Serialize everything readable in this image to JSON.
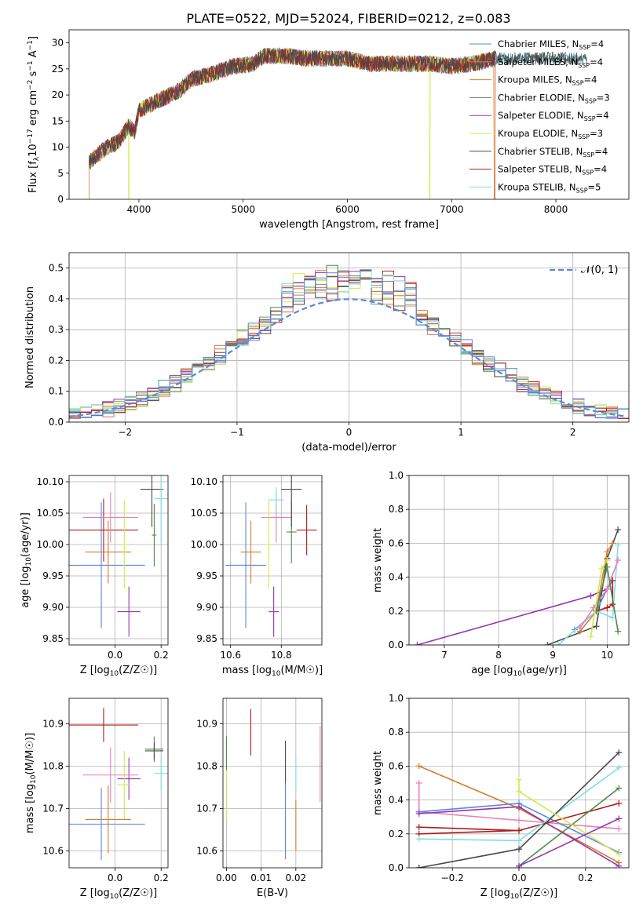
{
  "figure_title": "PLATE=0522, MJD=52024, FIBERID=0212, z=0.083",
  "series_styles": [
    {
      "name": "Chabrier MILES",
      "color": "#4e9aa0"
    },
    {
      "name": "Salpeter MILES",
      "color": "#e8704a"
    },
    {
      "name": "Kroupa MILES",
      "color": "#d97b2b"
    },
    {
      "name": "Chabrier ELODIE",
      "color": "#4d8a4a"
    },
    {
      "name": "Salpeter ELODIE",
      "color": "#9335b0"
    },
    {
      "name": "Kroupa ELODIE",
      "color": "#d4e64d"
    },
    {
      "name": "Chabrier STELIB",
      "color": "#4a4a4a"
    },
    {
      "name": "Salpeter STELIB",
      "color": "#b01a1a"
    },
    {
      "name": "Kroupa STELIB",
      "color": "#82dde0"
    }
  ],
  "extra_colors": {
    "blue": "#5b88e0",
    "pink": "#e87fb8",
    "gauss": "#5b88d8"
  },
  "chart_data": [
    {
      "id": "spectrum",
      "type": "line",
      "xlabel": "wavelength [Angstrom, rest frame]",
      "ylabel_parts": {
        "pre": "Flux [f",
        "sub": "λ",
        "mid": "10",
        "sup1": "−17",
        "mid2": " erg cm",
        "sup2": "−2",
        "mid3": " s",
        "sup3": "−1",
        "mid4": " A",
        "sup4": "−1",
        "post": "]"
      },
      "xlim": [
        3330,
        8700
      ],
      "ylim": [
        0,
        32.5
      ],
      "xticks": [
        4000,
        5000,
        6000,
        7000,
        8000
      ],
      "yticks": [
        0,
        5,
        10,
        15,
        20,
        25,
        30
      ],
      "grid": false,
      "legend_position": "top-right",
      "legend": [
        {
          "label": "Chabrier MILES",
          "nssp": "4"
        },
        {
          "label": "Salpeter MILES",
          "nssp": "4"
        },
        {
          "label": "Kroupa MILES",
          "nssp": "4"
        },
        {
          "label": "Chabrier ELODIE",
          "nssp": "3"
        },
        {
          "label": "Salpeter ELODIE",
          "nssp": "4"
        },
        {
          "label": "Kroupa ELODIE",
          "nssp": "3"
        },
        {
          "label": "Chabrier STELIB",
          "nssp": "4"
        },
        {
          "label": "Salpeter STELIB",
          "nssp": "4"
        },
        {
          "label": "Kroupa STELIB",
          "nssp": "5"
        }
      ],
      "legend_text_nssp": "N",
      "legend_text_sub": "SSP",
      "continuum": [
        [
          3520,
          7
        ],
        [
          3600,
          8.5
        ],
        [
          3700,
          10
        ],
        [
          3800,
          11
        ],
        [
          3900,
          14
        ],
        [
          3960,
          13
        ],
        [
          4000,
          17
        ],
        [
          4100,
          18
        ],
        [
          4200,
          19
        ],
        [
          4300,
          20
        ],
        [
          4400,
          21
        ],
        [
          4500,
          23
        ],
        [
          4700,
          24
        ],
        [
          4900,
          25.5
        ],
        [
          5100,
          26
        ],
        [
          5200,
          27.5
        ],
        [
          5400,
          27.5
        ],
        [
          5600,
          27
        ],
        [
          5800,
          27
        ],
        [
          6000,
          27
        ],
        [
          6200,
          26
        ],
        [
          6400,
          26
        ],
        [
          6600,
          26
        ],
        [
          6800,
          26
        ],
        [
          7000,
          25.5
        ],
        [
          7200,
          26
        ],
        [
          7420,
          27
        ]
      ],
      "extended_range": [
        7420,
        8300
      ],
      "extended_series": [
        "Chabrier MILES",
        "Chabrier STELIB"
      ]
    },
    {
      "id": "residuals",
      "type": "step",
      "xlabel": "(data-model)/error",
      "ylabel": "Normed distribution",
      "xlim": [
        -2.5,
        2.5
      ],
      "ylim": [
        0,
        0.55
      ],
      "xticks": [
        -2,
        -1,
        0,
        1,
        2
      ],
      "xtick_labels": [
        "−2",
        "−1",
        "0",
        "1",
        "2"
      ],
      "yticks": [
        0.0,
        0.1,
        0.2,
        0.3,
        0.4,
        0.5
      ],
      "ytick_labels": [
        "0.0",
        "0.1",
        "0.2",
        "0.3",
        "0.4",
        "0.5"
      ],
      "grid": true,
      "bin_width": 0.1,
      "gaussian_label": "𝒩(0, 1)",
      "legend_position": "top-right"
    },
    {
      "id": "age_vs_Z",
      "type": "errorbar",
      "xlabel_parts": {
        "pre": "Z [log",
        "sub": "10",
        "post": "(Z/Z☉)]"
      },
      "ylabel_parts": {
        "pre": "age  [log",
        "sub": "10",
        "post": "(age/yr)]"
      },
      "xlim": [
        -0.2,
        0.23
      ],
      "ylim": [
        9.84,
        10.11
      ],
      "xticks": [
        0.0,
        0.2
      ],
      "xtick_labels": [
        "0.0",
        "0.2"
      ],
      "yticks": [
        9.85,
        9.9,
        9.95,
        10.0,
        10.05,
        10.1
      ],
      "ytick_labels": [
        "9.85",
        "9.90",
        "9.95",
        "10.00",
        "10.05",
        "10.10"
      ],
      "grid": true,
      "points": [
        {
          "color": "#5b88e0",
          "x": -0.06,
          "xerr": 0.19,
          "y": 9.967,
          "yerr": 0.1
        },
        {
          "color": "#9335b0",
          "x": 0.06,
          "xerr": 0.05,
          "y": 9.893,
          "yerr": 0.04
        },
        {
          "color": "#b01a1a",
          "x": -0.05,
          "xerr": 0.15,
          "y": 10.023,
          "yerr": 0.05
        },
        {
          "color": "#e87fb8",
          "x": -0.02,
          "xerr": 0.12,
          "y": 10.043,
          "yerr": 0.04
        },
        {
          "color": "#d97b2b",
          "x": -0.03,
          "xerr": 0.1,
          "y": 9.988,
          "yerr": 0.05
        },
        {
          "color": "#d4e64d",
          "x": 0.04,
          "xerr": 0.01,
          "y": 10.0,
          "yerr": 0.07
        },
        {
          "color": "#4d8a4a",
          "x": 0.17,
          "xerr": 0.01,
          "y": 10.015,
          "yerr": 0.05
        },
        {
          "color": "#4a4a4a",
          "x": 0.16,
          "xerr": 0.05,
          "y": 10.088,
          "yerr": 0.06
        },
        {
          "color": "#82dde0",
          "x": 0.2,
          "xerr": 0.03,
          "y": 10.073,
          "yerr": 0.07
        }
      ]
    },
    {
      "id": "age_vs_mass",
      "type": "errorbar",
      "xlabel_parts": {
        "pre": "mass [log",
        "sub": "10",
        "post": "(M/M☉)]"
      },
      "xlim": [
        10.57,
        10.96
      ],
      "ylim": [
        9.84,
        10.11
      ],
      "xticks": [
        10.6,
        10.8
      ],
      "xtick_labels": [
        "10.6",
        "10.8"
      ],
      "yticks": [
        9.85,
        9.9,
        9.95,
        10.0,
        10.05,
        10.1
      ],
      "ytick_labels": [
        "9.85",
        "9.90",
        "9.95",
        "10.00",
        "10.05",
        "10.10"
      ],
      "grid": true,
      "points": [
        {
          "color": "#5b88e0",
          "x": 10.66,
          "xerr": 0.08,
          "y": 9.967,
          "yerr": 0.1
        },
        {
          "color": "#9335b0",
          "x": 10.77,
          "xerr": 0.02,
          "y": 9.893,
          "yerr": 0.04
        },
        {
          "color": "#b01a1a",
          "x": 10.9,
          "xerr": 0.04,
          "y": 10.023,
          "yerr": 0.04
        },
        {
          "color": "#e87fb8",
          "x": 10.78,
          "xerr": 0.06,
          "y": 10.043,
          "yerr": 0.04
        },
        {
          "color": "#d97b2b",
          "x": 10.68,
          "xerr": 0.04,
          "y": 9.988,
          "yerr": 0.05
        },
        {
          "color": "#d4e64d",
          "x": 10.75,
          "xerr": 0.01,
          "y": 10.0,
          "yerr": 0.07
        },
        {
          "color": "#4d8a4a",
          "x": 10.84,
          "xerr": 0.02,
          "y": 10.02,
          "yerr": 0.05
        },
        {
          "color": "#4a4a4a",
          "x": 10.84,
          "xerr": 0.04,
          "y": 10.088,
          "yerr": 0.06
        },
        {
          "color": "#82dde0",
          "x": 10.78,
          "xerr": 0.03,
          "y": 10.071,
          "yerr": 0.02
        }
      ]
    },
    {
      "id": "weight_vs_age",
      "type": "line",
      "xlabel_parts": {
        "pre": "age  [log",
        "sub": "10",
        "post": "(age/yr)]"
      },
      "ylabel": "mass weight",
      "xlim": [
        6.35,
        10.4
      ],
      "ylim": [
        0,
        1
      ],
      "xticks": [
        7,
        8,
        9,
        10
      ],
      "yticks": [
        0.0,
        0.2,
        0.4,
        0.6,
        0.8,
        1.0
      ],
      "ytick_labels": [
        "0.0",
        "0.2",
        "0.4",
        "0.6",
        "0.8",
        "1.0"
      ],
      "grid": true,
      "series": [
        {
          "color": "#9335b0",
          "x": [
            6.5,
            9.7,
            10.0,
            10.1
          ],
          "y": [
            0.0,
            0.29,
            0.33,
            0.38
          ]
        },
        {
          "color": "#4a4a4a",
          "x": [
            8.9,
            9.8,
            10.0,
            10.2
          ],
          "y": [
            0.0,
            0.11,
            0.51,
            0.68
          ]
        },
        {
          "color": "#5b88e0",
          "x": [
            9.4,
            9.8,
            10.0,
            10.1
          ],
          "y": [
            0.09,
            0.2,
            0.33,
            0.38
          ]
        },
        {
          "color": "#d97b2b",
          "x": [
            9.5,
            9.8,
            10.0,
            10.1
          ],
          "y": [
            0.08,
            0.2,
            0.55,
            0.6
          ]
        },
        {
          "color": "#82dde0",
          "x": [
            9.1,
            9.8,
            10.1,
            10.2
          ],
          "y": [
            0.0,
            0.2,
            0.16,
            0.59
          ]
        },
        {
          "color": "#e87fb8",
          "x": [
            9.5,
            9.75,
            10.0,
            10.2
          ],
          "y": [
            0.1,
            0.22,
            0.33,
            0.5
          ]
        },
        {
          "color": "#b01a1a",
          "x": [
            9.8,
            10.0,
            10.1,
            10.1
          ],
          "y": [
            0.2,
            0.22,
            0.24,
            0.38
          ]
        },
        {
          "color": "#4d8a4a",
          "x": [
            9.8,
            10.0,
            10.2
          ],
          "y": [
            0.2,
            0.46,
            0.08
          ]
        },
        {
          "color": "#d4e64d",
          "x": [
            9.7,
            9.9,
            10.0
          ],
          "y": [
            0.05,
            0.45,
            0.5
          ]
        }
      ]
    },
    {
      "id": "mass_vs_Z",
      "type": "errorbar",
      "xlabel_parts": {
        "pre": "Z [log",
        "sub": "10",
        "post": "(Z/Z☉)]"
      },
      "ylabel_parts": {
        "pre": "mass [log",
        "sub": "10",
        "post": "(M/M☉)]"
      },
      "xlim": [
        -0.2,
        0.23
      ],
      "ylim": [
        10.56,
        10.96
      ],
      "xticks": [
        0.0,
        0.2
      ],
      "xtick_labels": [
        "0.0",
        "0.2"
      ],
      "yticks": [
        10.6,
        10.7,
        10.8,
        10.9
      ],
      "ytick_labels": [
        "10.6",
        "10.7",
        "10.8",
        "10.9"
      ],
      "grid": true,
      "points": [
        {
          "color": "#5b88e0",
          "x": -0.06,
          "xerr": 0.19,
          "y": 10.663,
          "yerr": 0.085
        },
        {
          "color": "#9335b0",
          "x": 0.06,
          "xerr": 0.05,
          "y": 10.77,
          "yerr": 0.05
        },
        {
          "color": "#b01a1a",
          "x": -0.05,
          "xerr": 0.15,
          "y": 10.897,
          "yerr": 0.04
        },
        {
          "color": "#e87fb8",
          "x": -0.02,
          "xerr": 0.12,
          "y": 10.779,
          "yerr": 0.065
        },
        {
          "color": "#d97b2b",
          "x": -0.03,
          "xerr": 0.1,
          "y": 10.674,
          "yerr": 0.08
        },
        {
          "color": "#d4e64d",
          "x": 0.04,
          "xerr": 0.03,
          "y": 10.756,
          "yerr": 0.08
        },
        {
          "color": "#4d8a4a",
          "x": 0.17,
          "xerr": 0.04,
          "y": 10.84,
          "yerr": 0.03
        },
        {
          "color": "#4a4a4a",
          "x": 0.17,
          "xerr": 0.04,
          "y": 10.836,
          "yerr": 0.02
        },
        {
          "color": "#82dde0",
          "x": 0.2,
          "xerr": 0.03,
          "y": 10.783,
          "yerr": 0.04
        }
      ]
    },
    {
      "id": "mass_vs_EBV",
      "type": "errorbar",
      "xlabel": "E(B-V)",
      "xlim": [
        -0.001,
        0.0275
      ],
      "ylim": [
        10.56,
        10.96
      ],
      "xticks": [
        0.0,
        0.01,
        0.02
      ],
      "xtick_labels": [
        "0.00",
        "0.01",
        "0.02"
      ],
      "yticks": [
        10.6,
        10.7,
        10.8,
        10.9
      ],
      "ytick_labels": [
        "10.6",
        "10.7",
        "10.8",
        "10.9"
      ],
      "grid": true,
      "points": [
        {
          "color": "#4d8a4a",
          "x": 0.0,
          "y": 10.83,
          "yerr": 0.04
        },
        {
          "color": "#d4e64d",
          "x": 0.0,
          "y": 10.73,
          "yerr": 0.06
        },
        {
          "color": "#b01a1a",
          "x": 0.007,
          "y": 10.88,
          "yerr": 0.055
        },
        {
          "color": "#5b88e0",
          "x": 0.017,
          "y": 10.67,
          "yerr": 0.09
        },
        {
          "color": "#4a4a4a",
          "x": 0.017,
          "y": 10.81,
          "yerr": 0.05
        },
        {
          "color": "#d97b2b",
          "x": 0.02,
          "y": 10.66,
          "yerr": 0.06
        },
        {
          "color": "#82dde0",
          "x": 0.02,
          "y": 10.78,
          "yerr": 0.04
        },
        {
          "color": "#e87fb8",
          "x": 0.027,
          "y": 10.805,
          "yerr": 0.09
        }
      ]
    },
    {
      "id": "weight_vs_Z",
      "type": "line",
      "xlabel_parts": {
        "pre": "Z [log",
        "sub": "10",
        "post": "(Z/Z☉)]"
      },
      "ylabel": "mass weight",
      "xlim": [
        -0.33,
        0.33
      ],
      "ylim": [
        0,
        1
      ],
      "xticks": [
        -0.2,
        0.0,
        0.2
      ],
      "xtick_labels": [
        "−0.2",
        "0.0",
        "0.2"
      ],
      "yticks": [
        0.0,
        0.2,
        0.4,
        0.6,
        0.8,
        1.0
      ],
      "ytick_labels": [
        "0.0",
        "0.2",
        "0.4",
        "0.6",
        "0.8",
        "1.0"
      ],
      "grid": true,
      "series": [
        {
          "color": "#d97b2b",
          "x": [
            -0.3,
            0.0,
            0.3
          ],
          "y": [
            0.6,
            0.35,
            0.03
          ]
        },
        {
          "color": "#e87fb8",
          "x": [
            -0.3,
            -0.3,
            0.0,
            0.3
          ],
          "y": [
            0.5,
            0.33,
            0.28,
            0.23
          ]
        },
        {
          "color": "#5b88e0",
          "x": [
            -0.3,
            0.0,
            0.3
          ],
          "y": [
            0.33,
            0.38,
            0.09
          ]
        },
        {
          "color": "#9335b0",
          "x": [
            -0.3,
            0.0,
            0.3
          ],
          "y": [
            0.32,
            0.36,
            0.01
          ]
        },
        {
          "color": "#b01a1a",
          "x": [
            -0.3,
            0.0,
            0.3
          ],
          "y": [
            0.24,
            0.22,
            0.38
          ]
        },
        {
          "color": "#b01a1a",
          "x": [
            -0.3,
            0.0
          ],
          "y": [
            0.2,
            0.22
          ]
        },
        {
          "color": "#82dde0",
          "x": [
            -0.3,
            0.0,
            0.3
          ],
          "y": [
            0.17,
            0.16,
            0.59
          ]
        },
        {
          "color": "#4a4a4a",
          "x": [
            -0.3,
            -0.3,
            0.0,
            0.3
          ],
          "y": [
            0.0,
            0.0,
            0.11,
            0.68
          ]
        },
        {
          "color": "#4d8a4a",
          "x": [
            0.0,
            0.0,
            0.3
          ],
          "y": [
            0.0,
            0.01,
            0.47
          ]
        },
        {
          "color": "#d4e64d",
          "x": [
            0.0,
            0.0,
            0.3
          ],
          "y": [
            0.52,
            0.45,
            0.08
          ]
        },
        {
          "color": "#9335b0",
          "x": [
            0.0,
            0.3
          ],
          "y": [
            0.01,
            0.29
          ]
        }
      ]
    }
  ]
}
